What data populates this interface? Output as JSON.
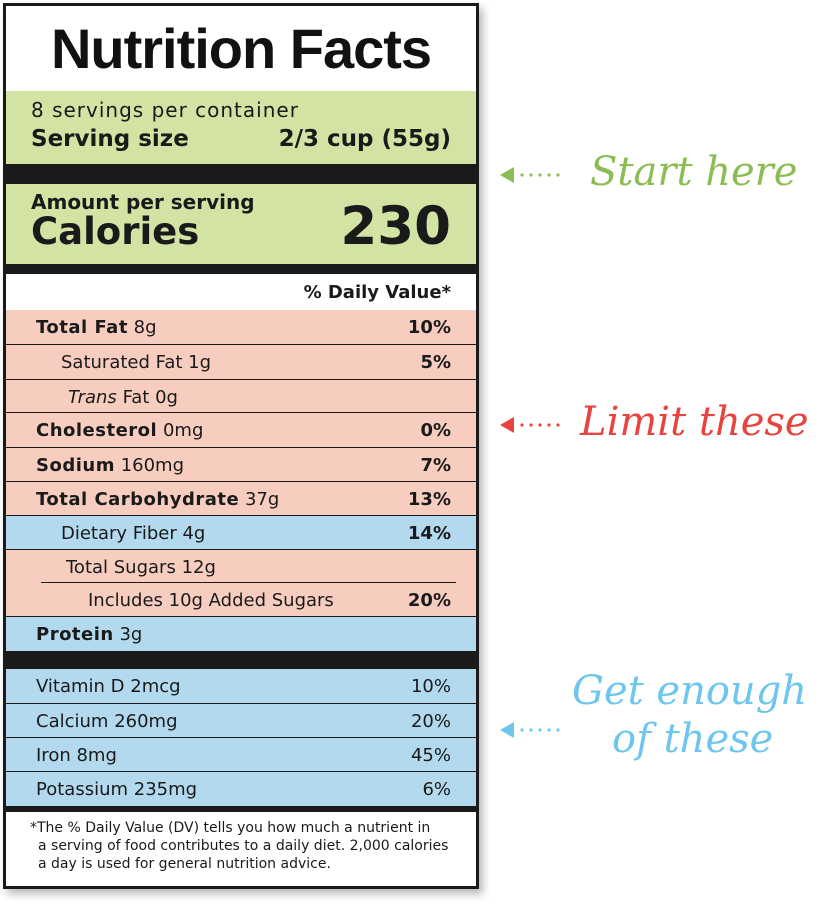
{
  "label": {
    "title": "Nutrition Facts",
    "servings_per_container": "8 servings per container",
    "serving_size_label": "Serving size",
    "serving_size_value": "2/3 cup (55g)",
    "amount_per_serving": "Amount per serving",
    "calories_label": "Calories",
    "calories_value": "230",
    "daily_value_header": "% Daily Value*",
    "nutrients": [
      {
        "name": "Total Fat",
        "amount": "8g",
        "dv": "10%"
      },
      {
        "name": "Saturated Fat",
        "amount": "1g",
        "dv": "5%"
      },
      {
        "name": "Trans",
        "name_rest": "Fat",
        "amount": "0g",
        "dv": ""
      },
      {
        "name": "Cholesterol",
        "amount": "0mg",
        "dv": "0%"
      },
      {
        "name": "Sodium",
        "amount": "160mg",
        "dv": "7%"
      },
      {
        "name": "Total Carbohydrate",
        "amount": "37g",
        "dv": "13%"
      },
      {
        "name": "Dietary Fiber",
        "amount": "4g",
        "dv": "14%"
      },
      {
        "name": "Total Sugars",
        "amount": "12g",
        "dv": ""
      },
      {
        "name": "Includes 10g Added Sugars",
        "amount": "",
        "dv": "20%"
      },
      {
        "name": "Protein",
        "amount": "3g",
        "dv": ""
      }
    ],
    "vitamins": [
      {
        "name": "Vitamin D",
        "amount": "2mcg",
        "dv": "10%"
      },
      {
        "name": "Calcium",
        "amount": "260mg",
        "dv": "20%"
      },
      {
        "name": "Iron",
        "amount": "8mg",
        "dv": "45%"
      },
      {
        "name": "Potassium",
        "amount": "235mg",
        "dv": "6%"
      }
    ],
    "footnote": [
      "*The % Daily Value (DV) tells you how much a nutrient in",
      "a serving of food contributes to a daily diet. 2,000 calories",
      "a day is used for general nutrition advice."
    ]
  },
  "callouts": [
    {
      "text_lines": [
        "Start here"
      ],
      "color": "#8cbd55"
    },
    {
      "text_lines": [
        "Limit these"
      ],
      "color": "#e8433f"
    },
    {
      "text_lines": [
        "Get enough",
        "of these"
      ],
      "color": "#6ec6ee"
    }
  ],
  "colors": {
    "green_band": "#d2e3a4",
    "limit_band": "#f7cdbf",
    "get_band": "#b2d9ee",
    "bar": "#1a1a1a"
  }
}
